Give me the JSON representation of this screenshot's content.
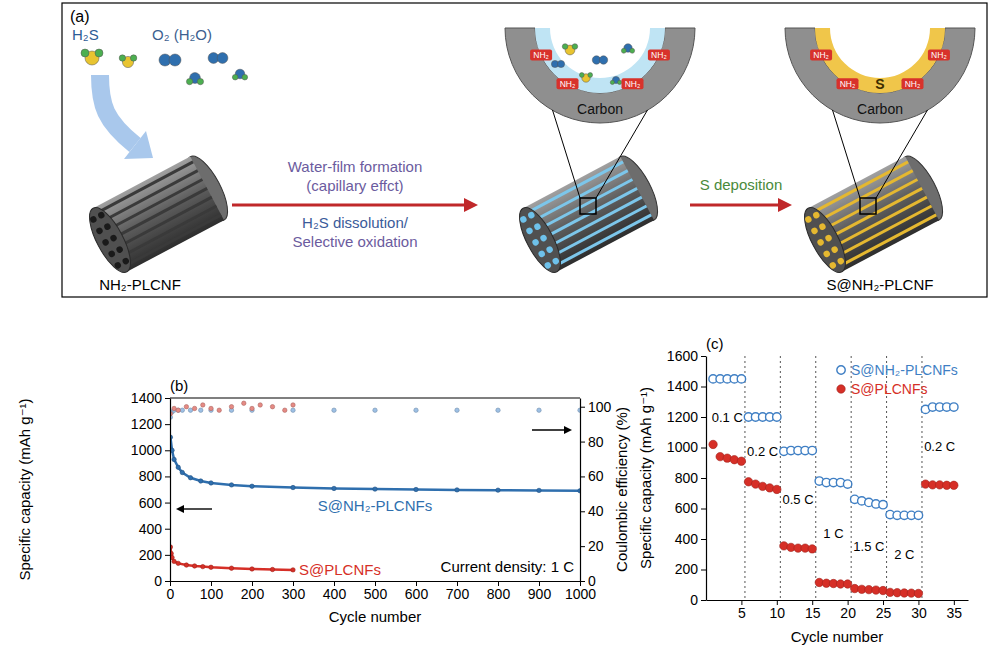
{
  "figure_a": {
    "label": "(a)",
    "reactants": [
      "H₂S",
      "O₂ (H₂O)"
    ],
    "start": "NH₂-PLCNF",
    "step_1_above": [
      "Water-film formation",
      "(capillary effct)"
    ],
    "step_1_below": [
      "H₂S dissolution/",
      "Selective oxidation"
    ],
    "step_2": "S deposition",
    "end": "S@NH₂-PLCNF",
    "support": "Carbon",
    "deposit": "S",
    "group": "NH₂"
  },
  "chart_data": [
    {
      "type": "line",
      "label": "(b)",
      "x_label": "Cycle number",
      "y_label": "Specific capacity (mAh g⁻¹)",
      "y2_label": "Coulombic efficiency (%)",
      "annotations": [
        "Current density: 1 C"
      ],
      "xlim": [
        0,
        1000
      ],
      "xticks": [
        0,
        100,
        200,
        300,
        400,
        500,
        600,
        700,
        800,
        900,
        1000
      ],
      "ylim": [
        0,
        1400
      ],
      "yticks": [
        0,
        200,
        400,
        600,
        800,
        1000,
        1200,
        1400
      ],
      "y2lim": [
        0,
        105
      ],
      "y2ticks": [
        0,
        20,
        40,
        60,
        80,
        100
      ],
      "series": [
        {
          "name": "S@NH₂-PLCNFs",
          "color": "#2f6fae",
          "marker": "circle",
          "line_style": "solid",
          "x": [
            1,
            5,
            10,
            20,
            30,
            50,
            75,
            100,
            150,
            200,
            300,
            400,
            500,
            600,
            700,
            800,
            900,
            1000
          ],
          "values": [
            1100,
            1000,
            930,
            870,
            830,
            790,
            765,
            750,
            735,
            725,
            715,
            708,
            703,
            700,
            697,
            695,
            693,
            690
          ]
        },
        {
          "color": "#9dc0e5",
          "marker": "circle",
          "line_style": "none",
          "axis": "y2",
          "x": [
            1,
            5,
            10,
            20,
            30,
            50,
            75,
            100,
            150,
            200,
            300,
            400,
            500,
            600,
            700,
            800,
            900,
            1000
          ],
          "values": [
            94,
            97,
            98,
            98,
            98,
            98,
            98,
            98,
            98,
            98,
            98,
            98,
            98,
            98,
            98,
            98,
            98,
            98
          ]
        },
        {
          "name": "S@PLCNFs",
          "color": "#d62f27",
          "marker": "circle",
          "line_style": "solid",
          "x": [
            1,
            3,
            5,
            10,
            20,
            40,
            60,
            80,
            100,
            150,
            200,
            250,
            300
          ],
          "values": [
            260,
            210,
            180,
            150,
            135,
            122,
            115,
            110,
            105,
            98,
            92,
            88,
            85
          ]
        },
        {
          "color": "#e58a84",
          "marker": "circle",
          "line_style": "none",
          "axis": "y2",
          "x": [
            1,
            10,
            20,
            40,
            60,
            80,
            100,
            120,
            150,
            180,
            200,
            220,
            250,
            280,
            300
          ],
          "values": [
            96,
            99,
            98,
            100,
            99,
            101,
            99,
            98,
            100,
            102,
            99,
            101,
            100,
            98,
            101
          ]
        }
      ]
    },
    {
      "type": "scatter",
      "label": "(c)",
      "x_label": "Cycle number",
      "y_label": "Specific capacity (mAh g⁻¹)",
      "legend": "upper right",
      "x": [
        1,
        2,
        3,
        4,
        5,
        6,
        7,
        8,
        9,
        10,
        11,
        12,
        13,
        14,
        15,
        16,
        17,
        18,
        19,
        20,
        21,
        22,
        23,
        24,
        25,
        26,
        27,
        28,
        29,
        30,
        31,
        32,
        33,
        34,
        35
      ],
      "xlim": [
        0,
        37
      ],
      "xticks": [
        5,
        10,
        15,
        20,
        25,
        30,
        35
      ],
      "ylim": [
        0,
        1600
      ],
      "yticks": [
        0,
        200,
        400,
        600,
        800,
        1000,
        1200,
        1400,
        1600
      ],
      "separators": [
        5.5,
        10.5,
        15.5,
        20.5,
        25.5,
        30.5
      ],
      "rates": [
        "0.1 C",
        "0.2 C",
        "0.5 C",
        "1 C",
        "1.5 C",
        "2 C",
        "0.2 C"
      ],
      "series": [
        {
          "name": "S@NH₂-PLCNFs",
          "color": "#3f7fc4",
          "marker": "open_circle",
          "values": [
            1450,
            1450,
            1450,
            1450,
            1450,
            1200,
            1200,
            1200,
            1200,
            1200,
            975,
            980,
            980,
            980,
            980,
            780,
            770,
            770,
            770,
            760,
            660,
            650,
            640,
            630,
            625,
            560,
            555,
            555,
            555,
            555,
            1250,
            1265,
            1265,
            1265,
            1265
          ]
        },
        {
          "name": "S@PLCNFs",
          "color": "#d62f27",
          "marker": "circle",
          "values": [
            1020,
            940,
            930,
            920,
            910,
            775,
            760,
            745,
            735,
            725,
            355,
            345,
            340,
            340,
            335,
            115,
            110,
            108,
            105,
            105,
            75,
            70,
            68,
            65,
            62,
            50,
            48,
            46,
            45,
            43,
            760,
            755,
            755,
            752,
            752
          ]
        }
      ]
    }
  ]
}
